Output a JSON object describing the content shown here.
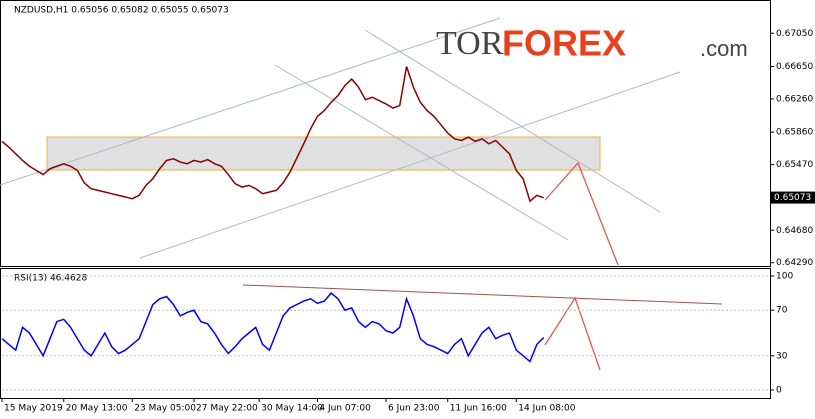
{
  "chart_data": [
    {
      "type": "line",
      "title": "NZDUSD,H1 0.65056 0.65082 0.65055 0.65073",
      "xlim": [
        0,
        112
      ],
      "ylim": [
        0.6425,
        0.6745
      ],
      "yticks": [
        {
          "value": 0.6705,
          "label": "0.67050"
        },
        {
          "value": 0.6665,
          "label": "0.66650"
        },
        {
          "value": 0.6626,
          "label": "0.66260"
        },
        {
          "value": 0.6586,
          "label": "0.65860"
        },
        {
          "value": 0.6547,
          "label": "0.65470"
        },
        {
          "value": 0.6468,
          "label": "0.64680"
        },
        {
          "value": 0.6429,
          "label": "0.64290"
        }
      ],
      "last_price": {
        "value": 0.65073,
        "label": "0.65073"
      },
      "series": [
        {
          "color": "#8b0000",
          "values": [
            0.6575,
            0.6568,
            0.656,
            0.6552,
            0.6545,
            0.654,
            0.6535,
            0.6542,
            0.6545,
            0.6548,
            0.6545,
            0.654,
            0.6525,
            0.6518,
            0.6516,
            0.6514,
            0.6512,
            0.651,
            0.6508,
            0.6506,
            0.651,
            0.6522,
            0.653,
            0.6542,
            0.6552,
            0.6554,
            0.655,
            0.6548,
            0.6552,
            0.655,
            0.6553,
            0.6548,
            0.6545,
            0.6535,
            0.6524,
            0.652,
            0.6522,
            0.6518,
            0.6512,
            0.6514,
            0.6516,
            0.6525,
            0.6538,
            0.6555,
            0.6572,
            0.659,
            0.6605,
            0.6612,
            0.6622,
            0.663,
            0.6642,
            0.665,
            0.664,
            0.6625,
            0.6628,
            0.6624,
            0.662,
            0.6615,
            0.6618,
            0.6665,
            0.664,
            0.6622,
            0.6612,
            0.6605,
            0.6595,
            0.6585,
            0.6578,
            0.6576,
            0.658,
            0.6575,
            0.6578,
            0.6572,
            0.6576,
            0.6568,
            0.656,
            0.654,
            0.653,
            0.6503,
            0.651,
            0.6507
          ]
        }
      ]
    },
    {
      "type": "line",
      "title": "RSI(13) 46.4628",
      "xlim": [
        0,
        112
      ],
      "ylim": [
        -7,
        107
      ],
      "yticks": [
        100,
        70,
        30,
        0
      ],
      "xticks": [
        {
          "value": 0,
          "label": "15 May 2019"
        },
        {
          "value": 9,
          "label": "20 May 13:00"
        },
        {
          "value": 19,
          "label": "23 May 05:00"
        },
        {
          "value": 28,
          "label": "27 May 22:00"
        },
        {
          "value": 37.5,
          "label": "30 May 14:00"
        },
        {
          "value": 46,
          "label": "4 Jun 07:00"
        },
        {
          "value": 56,
          "label": "6 Jun 23:00"
        },
        {
          "value": 65,
          "label": "11 Jun 16:00"
        },
        {
          "value": 75,
          "label": "14 Jun 08:00"
        }
      ],
      "series": [
        {
          "color": "#0000ff",
          "values": [
            45,
            40,
            35,
            55,
            50,
            40,
            30,
            45,
            60,
            62,
            55,
            45,
            35,
            30,
            40,
            50,
            38,
            32,
            35,
            40,
            45,
            60,
            75,
            80,
            82,
            75,
            65,
            68,
            70,
            60,
            58,
            50,
            40,
            32,
            38,
            45,
            50,
            55,
            40,
            35,
            50,
            65,
            72,
            75,
            78,
            80,
            76,
            78,
            85,
            80,
            70,
            72,
            60,
            55,
            60,
            58,
            52,
            50,
            55,
            80,
            65,
            45,
            40,
            38,
            35,
            32,
            40,
            45,
            30,
            40,
            50,
            55,
            45,
            48,
            50,
            35,
            30,
            25,
            40,
            46
          ]
        }
      ]
    }
  ],
  "logo": {
    "parts": [
      "TOR",
      "FOREX",
      ".com"
    ]
  }
}
